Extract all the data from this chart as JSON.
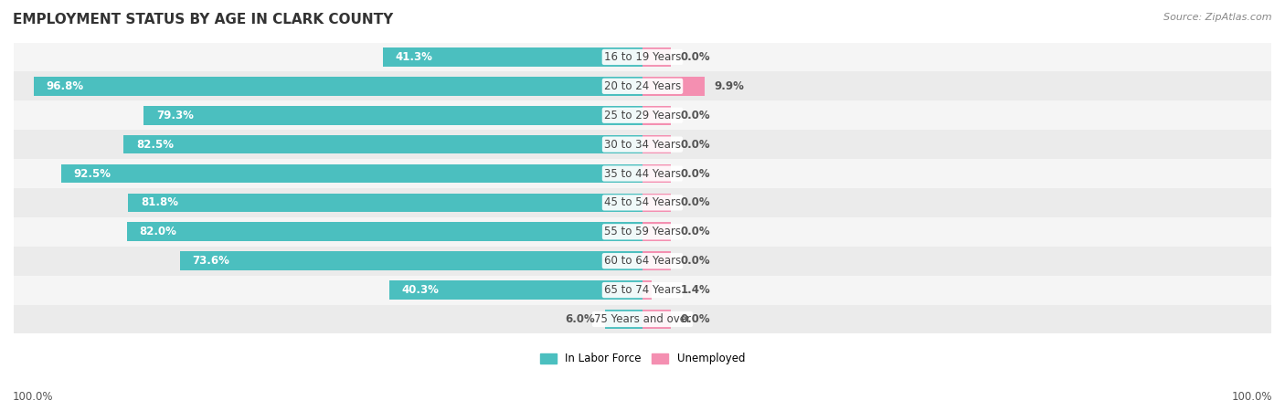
{
  "title": "EMPLOYMENT STATUS BY AGE IN CLARK COUNTY",
  "source": "Source: ZipAtlas.com",
  "categories": [
    "16 to 19 Years",
    "20 to 24 Years",
    "25 to 29 Years",
    "30 to 34 Years",
    "35 to 44 Years",
    "45 to 54 Years",
    "55 to 59 Years",
    "60 to 64 Years",
    "65 to 74 Years",
    "75 Years and over"
  ],
  "labor_force": [
    41.3,
    96.8,
    79.3,
    82.5,
    92.5,
    81.8,
    82.0,
    73.6,
    40.3,
    6.0
  ],
  "unemployed": [
    0.0,
    9.9,
    0.0,
    0.0,
    0.0,
    0.0,
    0.0,
    0.0,
    1.4,
    0.0
  ],
  "labor_color": "#4bbfbf",
  "unemployed_color": "#f48fb1",
  "row_bg_even": "#f5f5f5",
  "row_bg_odd": "#ebebeb",
  "axis_label_left": "100.0%",
  "axis_label_right": "100.0%",
  "max_value": 100.0,
  "stub_value": 4.5,
  "title_fontsize": 11,
  "source_fontsize": 8,
  "bar_label_fontsize": 8.5,
  "category_fontsize": 8.5,
  "axis_fontsize": 8.5
}
